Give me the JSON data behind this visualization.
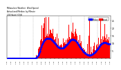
{
  "background_color": "#ffffff",
  "bar_color": "#ff0000",
  "median_color": "#0000ff",
  "legend_actual_label": "Actual",
  "legend_median_label": "Median",
  "ylim": [
    0,
    28
  ],
  "ytick_values": [
    5,
    10,
    15,
    20,
    25
  ],
  "num_points": 1440,
  "seed": 7,
  "title_text": "Milwaukee Weather  Wind Speed\nActual and Median  by Minute\n(24 Hours) (Old)"
}
